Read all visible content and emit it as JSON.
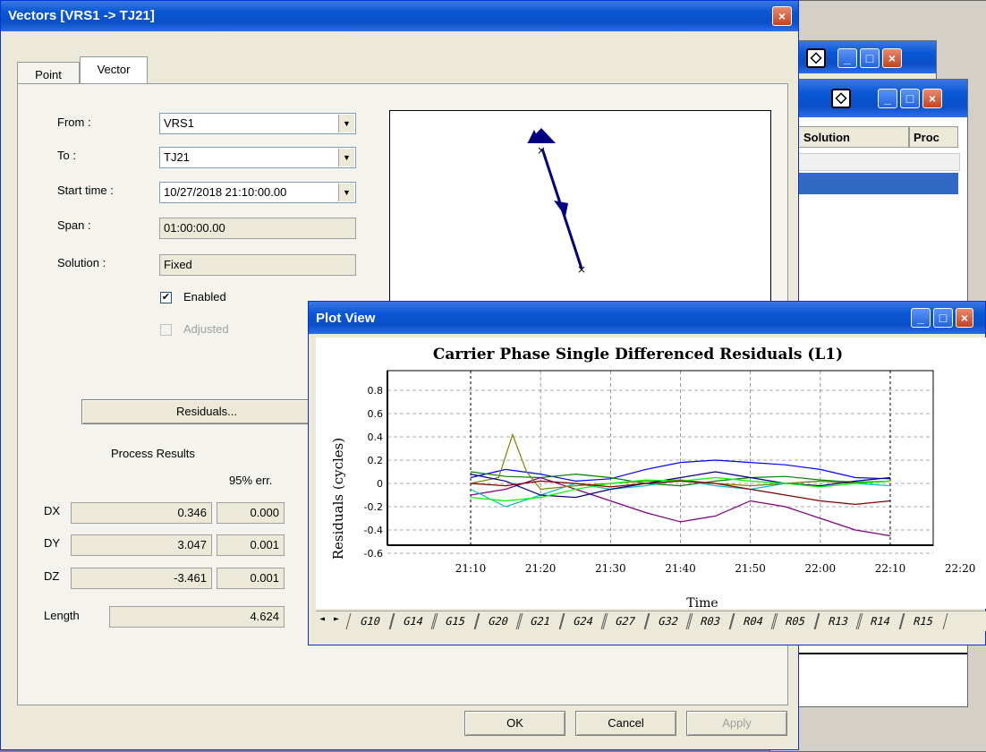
{
  "vectors_dialog": {
    "title": "Vectors [VRS1  -> TJ21]",
    "close": "×",
    "tabs": [
      {
        "label": "Point"
      },
      {
        "label": "Vector"
      }
    ],
    "from_label": "From :",
    "from_value": "VRS1",
    "to_label": "To :",
    "to_value": "TJ21",
    "start_label": "Start time :",
    "start_value": "10/27/2018 21:10:00.00",
    "span_label": "Span :",
    "span_value": "01:00:00.00",
    "solution_label": "Solution :",
    "solution_value": "Fixed",
    "enabled_label": "Enabled",
    "enabled_check": "✔",
    "adjusted_label": "Adjusted",
    "residuals_button": "Residuals...",
    "process_results_label": "Process Results",
    "err_header": "95% err.",
    "rows": [
      {
        "label": "DX",
        "value": "0.346",
        "err": "0.000"
      },
      {
        "label": "DY",
        "value": "3.047",
        "err": "0.001"
      },
      {
        "label": "DZ",
        "value": "-3.461",
        "err": "0.001"
      }
    ],
    "length_label": "Length",
    "length_value": "4.624",
    "buttons": {
      "ok": "OK",
      "cancel": "Cancel",
      "apply": "Apply"
    }
  },
  "background_windows": {
    "column_solution": "Solution",
    "column_proc": "Proc",
    "minimize": "_",
    "maximize": "□",
    "close": "×",
    "diamond": "◇"
  },
  "plot_view": {
    "title": "Plot View",
    "minimize": "_",
    "maximize": "□",
    "close": "×",
    "tab_arrows": [
      "◄",
      "►"
    ],
    "tabs": [
      "G10",
      "G14",
      "G15",
      "G20",
      "G21",
      "G24",
      "G27",
      "G32",
      "R03",
      "R04",
      "R05",
      "R13",
      "R14",
      "R15"
    ]
  },
  "chart_data": {
    "type": "line",
    "title": "Carrier Phase Single Differenced Residuals (L1)",
    "xlabel": "Time",
    "ylabel": "Residuals (cycles)",
    "x_ticks": [
      "21:10",
      "21:20",
      "21:30",
      "21:40",
      "21:50",
      "22:00",
      "22:10",
      "22:20"
    ],
    "y_ticks": [
      "0.8",
      "0.6",
      "0.4",
      "0.2",
      "0",
      "-0.2",
      "-0.4",
      "-0.6"
    ],
    "xlim_minutes": [
      0,
      70
    ],
    "ylim": [
      -0.8,
      0.8
    ],
    "data_start_minutes": 0,
    "data_end_minutes": 60,
    "grid": true,
    "series_colors": [
      "#0000ff",
      "#008000",
      "#800080",
      "#00c0c0",
      "#808000",
      "#ff00ff",
      "#00a0a0",
      "#00ff00",
      "#000080",
      "#804000",
      "#ffff00",
      "#800000"
    ],
    "series": [
      {
        "color": "#0000ff",
        "x": [
          0,
          5,
          10,
          15,
          20,
          25,
          30,
          35,
          40,
          45,
          50,
          55,
          60
        ],
        "y": [
          0.05,
          0.12,
          0.08,
          0.02,
          0.04,
          0.12,
          0.18,
          0.2,
          0.18,
          0.16,
          0.12,
          0.05,
          0.04
        ]
      },
      {
        "color": "#008000",
        "x": [
          0,
          5,
          10,
          15,
          20,
          25,
          30,
          35,
          40,
          45,
          50,
          55,
          60
        ],
        "y": [
          0.1,
          0.06,
          0.05,
          0.08,
          0.05,
          0.0,
          -0.02,
          0.02,
          0.05,
          0.06,
          0.03,
          0.01,
          0.02
        ]
      },
      {
        "color": "#800080",
        "x": [
          0,
          5,
          10,
          15,
          20,
          25,
          30,
          35,
          40,
          45,
          50,
          55,
          60
        ],
        "y": [
          -0.1,
          -0.05,
          0.05,
          -0.05,
          -0.15,
          -0.25,
          -0.33,
          -0.28,
          -0.15,
          -0.2,
          -0.3,
          -0.4,
          -0.45
        ]
      },
      {
        "color": "#00c0c0",
        "x": [
          0,
          5,
          10,
          15,
          20,
          25,
          30,
          35,
          40,
          45,
          50,
          55,
          60
        ],
        "y": [
          -0.05,
          -0.2,
          -0.1,
          0.0,
          -0.05,
          -0.02,
          0.03,
          -0.02,
          -0.05,
          0.0,
          0.02,
          0.0,
          -0.02
        ]
      },
      {
        "color": "#808000",
        "x": [
          0,
          4,
          6,
          8,
          10,
          15,
          20,
          25,
          30,
          35,
          40,
          45,
          50,
          55,
          60
        ],
        "y": [
          0.0,
          0.05,
          0.42,
          0.1,
          -0.05,
          -0.02,
          0.0,
          0.02,
          0.03,
          0.0,
          -0.02,
          0.0,
          0.02,
          0.0,
          0.02
        ]
      },
      {
        "color": "#000080",
        "x": [
          0,
          5,
          10,
          15,
          20,
          25,
          30,
          35,
          40,
          45,
          50,
          55,
          60
        ],
        "y": [
          0.08,
          0.02,
          -0.1,
          -0.12,
          -0.05,
          0.0,
          0.05,
          0.1,
          0.05,
          0.0,
          -0.02,
          0.02,
          0.05
        ]
      },
      {
        "color": "#00ff00",
        "x": [
          0,
          5,
          10,
          15,
          20,
          25,
          30,
          35,
          40,
          45,
          50,
          55,
          60
        ],
        "y": [
          -0.12,
          -0.15,
          -0.12,
          -0.05,
          0.0,
          0.03,
          0.02,
          0.05,
          0.02,
          0.0,
          -0.03,
          0.0,
          0.02
        ]
      },
      {
        "color": "#800000",
        "x": [
          0,
          5,
          10,
          15,
          20,
          25,
          30,
          35,
          40,
          45,
          50,
          55,
          60
        ],
        "y": [
          0.0,
          -0.02,
          0.02,
          0.0,
          -0.03,
          0.0,
          0.02,
          0.0,
          -0.05,
          -0.1,
          -0.15,
          -0.18,
          -0.15
        ]
      }
    ]
  }
}
